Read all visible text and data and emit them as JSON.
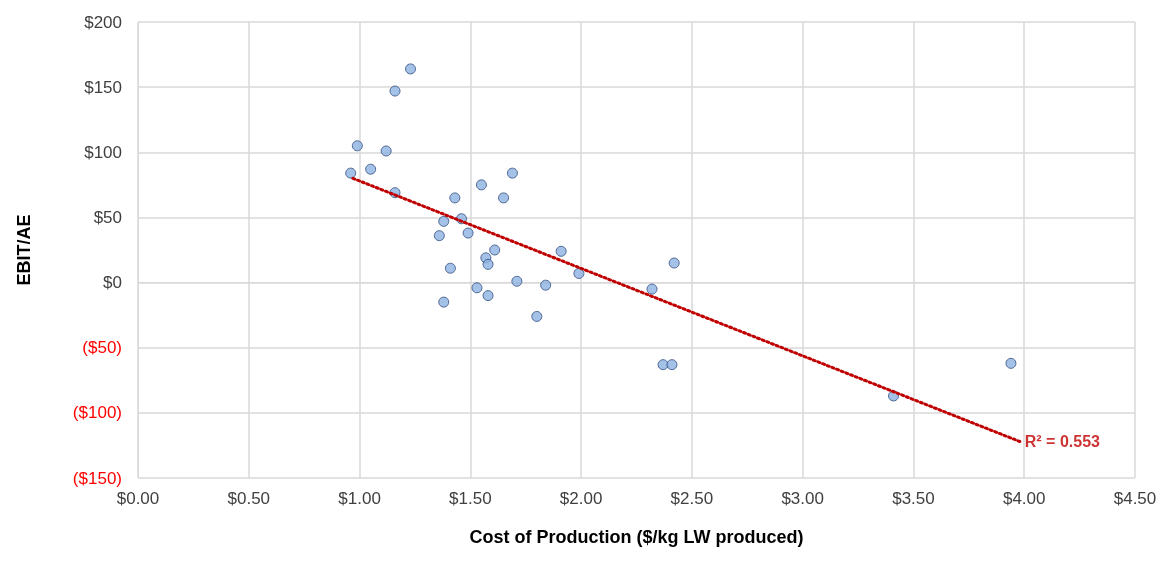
{
  "chart_data": {
    "type": "scatter",
    "xlabel": "Cost of Production ($/kg LW produced)",
    "ylabel": "EBIT/AE",
    "xlim": [
      0,
      4.5
    ],
    "xticks": [
      {
        "value": 0,
        "label": "$0.00"
      },
      {
        "value": 0.5,
        "label": "$0.50"
      },
      {
        "value": 1,
        "label": "$1.00"
      },
      {
        "value": 1.5,
        "label": "$1.50"
      },
      {
        "value": 2,
        "label": "$2.00"
      },
      {
        "value": 2.5,
        "label": "$2.50"
      },
      {
        "value": 3,
        "label": "$3.00"
      },
      {
        "value": 3.5,
        "label": "$3.50"
      },
      {
        "value": 4,
        "label": "$4.00"
      },
      {
        "value": 4.5,
        "label": "$4.50"
      }
    ],
    "ylim": [
      -150,
      200
    ],
    "yticks": [
      {
        "value": -150,
        "label": "($150)"
      },
      {
        "value": -100,
        "label": "($100)"
      },
      {
        "value": -50,
        "label": "($50)"
      },
      {
        "value": 0,
        "label": "$0"
      },
      {
        "value": 50,
        "label": "$50"
      },
      {
        "value": 100,
        "label": "$100"
      },
      {
        "value": 150,
        "label": "$150"
      },
      {
        "value": 200,
        "label": "$200"
      }
    ],
    "grid": true,
    "marker": "circle",
    "series": [
      {
        "color": "#8db3e2",
        "x": [
          0.96,
          0.99,
          1.05,
          1.12,
          1.16,
          1.16,
          1.23,
          1.43,
          1.36,
          1.38,
          1.38,
          1.41,
          1.46,
          1.49,
          1.53,
          1.55,
          1.57,
          1.58,
          1.58,
          1.61,
          1.65,
          1.69,
          1.71,
          1.8,
          1.84,
          1.91,
          1.99,
          2.32,
          2.37,
          2.41,
          2.42,
          3.41,
          3.94
        ],
        "values": [
          84,
          105,
          87,
          101,
          147,
          69,
          164,
          65,
          36,
          47,
          -15,
          11,
          49,
          38,
          -4,
          75,
          19,
          14,
          -10,
          25,
          65,
          84,
          1,
          -26,
          -2,
          24,
          7,
          -5,
          -63,
          -63,
          15,
          -87,
          -62
        ]
      },
      {
        "type": "line",
        "color": "#c00000",
        "line_style": "dotted",
        "marker": "none",
        "x": [
          0.97,
          3.98
        ],
        "values": [
          80,
          -122
        ]
      }
    ],
    "annotations": [
      {
        "text": "R² = 0.553",
        "x": 3.98,
        "y": -122
      }
    ]
  }
}
